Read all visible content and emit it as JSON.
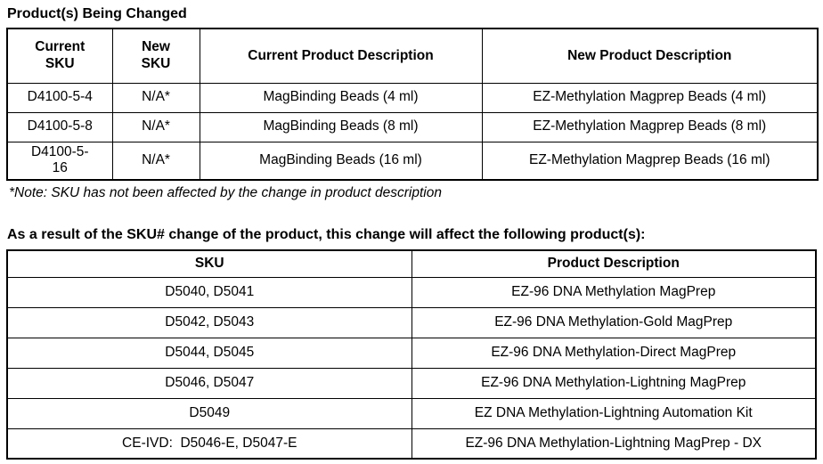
{
  "sections": {
    "changed": {
      "title": "Product(s) Being Changed",
      "note": "*Note: SKU has not been affected by the change in product description"
    },
    "affected": {
      "title": "As a result of the SKU# change of the product, this change will affect the following product(s):"
    }
  },
  "tables": {
    "changed": {
      "headers": [
        "Current SKU",
        "New SKU",
        "Current Product Description",
        "New Product Description"
      ],
      "rows": [
        [
          "D4100-5-4",
          "N/A*",
          "MagBinding Beads (4 ml)",
          "EZ-Methylation Magprep Beads (4 ml)"
        ],
        [
          "D4100-5-8",
          "N/A*",
          "MagBinding Beads (8 ml)",
          "EZ-Methylation Magprep Beads (8 ml)"
        ],
        [
          "D4100-5-16",
          "N/A*",
          "MagBinding Beads (16 ml)",
          "EZ-Methylation Magprep Beads (16 ml)"
        ]
      ]
    },
    "affected": {
      "headers": [
        "SKU",
        "Product Description"
      ],
      "rows": [
        [
          "D5040, D5041",
          "EZ-96 DNA Methylation MagPrep"
        ],
        [
          "D5042, D5043",
          "EZ-96 DNA Methylation-Gold MagPrep"
        ],
        [
          "D5044, D5045",
          "EZ-96 DNA Methylation-Direct MagPrep"
        ],
        [
          "D5046, D5047",
          "EZ-96 DNA Methylation-Lightning MagPrep"
        ],
        [
          "D5049",
          "EZ DNA Methylation-Lightning Automation Kit"
        ],
        [
          "CE-IVD:  D5046-E, D5047-E",
          "EZ-96 DNA Methylation-Lightning MagPrep - DX"
        ]
      ]
    }
  },
  "colors": {
    "text": "#000000",
    "background": "#ffffff",
    "border": "#000000"
  }
}
